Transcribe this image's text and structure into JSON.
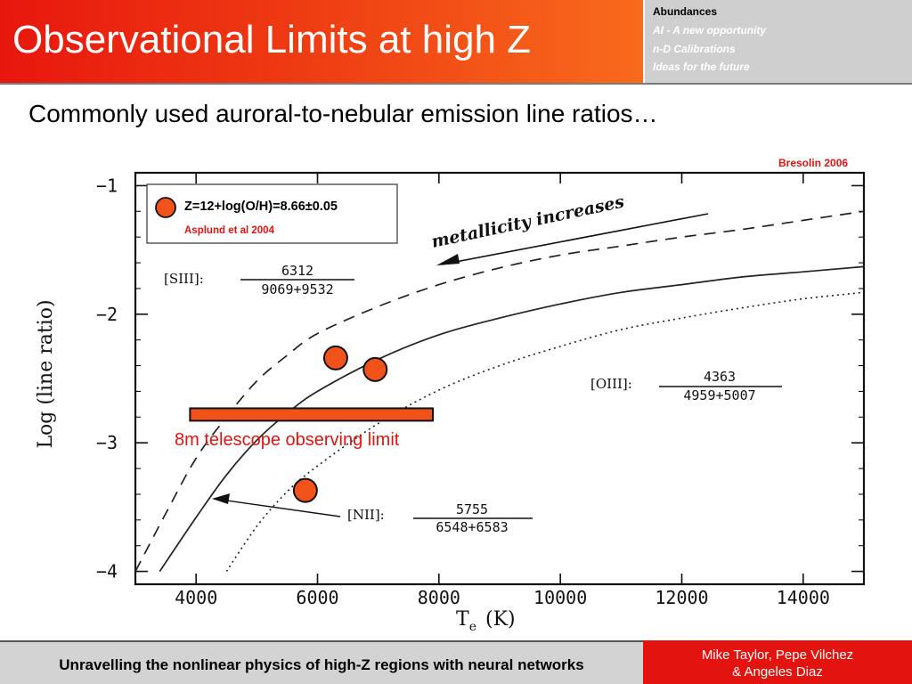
{
  "title": "Observational Limits at high Z",
  "nav": {
    "active": "Abundances",
    "items": [
      "AI - A new opportunity",
      "n-D Calibrations",
      "Ideas for the future"
    ]
  },
  "subtitle": "Commonly used auroral-to-nebular emission line ratios…",
  "credit": "Bresolin 2006",
  "footer": {
    "text": "Unravelling the nonlinear physics of high-Z regions with neural networks",
    "authors_line1": "Mike Taylor, Pepe Vilchez",
    "authors_line2": "& Angeles Diaz"
  },
  "colors": {
    "accent_red": "#e3140f",
    "marker_orange": "#f0521a",
    "limit_bar": "#f0521a"
  },
  "chart_data": {
    "type": "line",
    "xlabel": "T",
    "xlabel_sub": "e",
    "xlabel_unit": "(K)",
    "ylabel": "Log (line ratio)",
    "xlim": [
      3000,
      15000
    ],
    "ylim": [
      -4.1,
      -0.9
    ],
    "xticks": [
      4000,
      6000,
      8000,
      10000,
      12000,
      14000
    ],
    "xtick_labels": [
      "4000",
      "6000",
      "8000",
      "10000",
      "12000",
      "14000"
    ],
    "yticks": [
      -1,
      -2,
      -3,
      -4
    ],
    "ytick_labels": [
      "−1",
      "−2",
      "−3",
      "−4"
    ],
    "series": [
      {
        "name": "[SIII] 6312 / 9069+9532",
        "style": "dashed",
        "points": [
          [
            3000,
            -4.0
          ],
          [
            3500,
            -3.55
          ],
          [
            4000,
            -3.12
          ],
          [
            4500,
            -2.8
          ],
          [
            5000,
            -2.52
          ],
          [
            5500,
            -2.32
          ],
          [
            6000,
            -2.15
          ],
          [
            7000,
            -1.94
          ],
          [
            8000,
            -1.77
          ],
          [
            9000,
            -1.64
          ],
          [
            10000,
            -1.54
          ],
          [
            11000,
            -1.47
          ],
          [
            12000,
            -1.4
          ],
          [
            13000,
            -1.34
          ],
          [
            14000,
            -1.27
          ],
          [
            15000,
            -1.2
          ]
        ]
      },
      {
        "name": "[OIII] 4363 / 4959+5007",
        "style": "solid",
        "points": [
          [
            3400,
            -4.0
          ],
          [
            4000,
            -3.58
          ],
          [
            4500,
            -3.25
          ],
          [
            5000,
            -2.98
          ],
          [
            5500,
            -2.77
          ],
          [
            6000,
            -2.6
          ],
          [
            7000,
            -2.35
          ],
          [
            8000,
            -2.16
          ],
          [
            9000,
            -2.03
          ],
          [
            10000,
            -1.92
          ],
          [
            11000,
            -1.83
          ],
          [
            12000,
            -1.77
          ],
          [
            13000,
            -1.71
          ],
          [
            14000,
            -1.67
          ],
          [
            15000,
            -1.63
          ]
        ]
      },
      {
        "name": "[NII] 5755 / 6548+6583",
        "style": "dotted",
        "points": [
          [
            4500,
            -4.0
          ],
          [
            5000,
            -3.65
          ],
          [
            5500,
            -3.38
          ],
          [
            6000,
            -3.18
          ],
          [
            7000,
            -2.85
          ],
          [
            8000,
            -2.59
          ],
          [
            9000,
            -2.4
          ],
          [
            10000,
            -2.25
          ],
          [
            11000,
            -2.12
          ],
          [
            12000,
            -2.03
          ],
          [
            13000,
            -1.95
          ],
          [
            14000,
            -1.88
          ],
          [
            15000,
            -1.83
          ]
        ]
      }
    ],
    "labels": [
      {
        "text": "[SIII]:",
        "numerator": "6312",
        "denominator": "9069+9532"
      },
      {
        "text": "[OIII]:",
        "numerator": "4363",
        "denominator": "4959+5007"
      },
      {
        "text": "[NII]:",
        "numerator": "5755",
        "denominator": "6548+6583"
      }
    ],
    "annotations": {
      "arrow_text": "metallicity increases",
      "limit_text": "8m telescope observing limit",
      "limit_level": -2.78,
      "limit_range": [
        3900,
        7900
      ]
    },
    "markers": [
      {
        "x": 6300,
        "y": -2.34
      },
      {
        "x": 6950,
        "y": -2.43
      },
      {
        "x": 5800,
        "y": -3.37
      }
    ],
    "legend": {
      "label": "Z=12+log(O/H)=8.66±0.05",
      "source": "Asplund et al 2004",
      "position": "top-left"
    }
  }
}
